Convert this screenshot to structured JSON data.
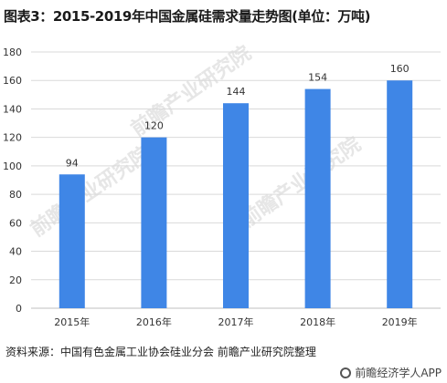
{
  "title": "图表3：2015-2019年中国金属硅需求量走势图(单位：万吨)",
  "source": "资料来源：中国有色金属工业协会硅业分会 前瞻产业研究院整理",
  "footer": "前瞻经济学人APP",
  "watermark": "前瞻产业研究院",
  "colors": {
    "bar": "#3f86e6",
    "grid": "#d9d9d9",
    "axis": "#bfbfbf"
  },
  "chart_data": {
    "type": "bar",
    "title": "图表3：2015-2019年中国金属硅需求量走势图(单位：万吨)",
    "categories": [
      "2015年",
      "2016年",
      "2017年",
      "2018年",
      "2019年"
    ],
    "values": [
      94,
      120,
      144,
      154,
      160
    ],
    "ylim": [
      0,
      180
    ],
    "yticks": [
      0,
      20,
      40,
      60,
      80,
      100,
      120,
      140,
      160,
      180
    ],
    "grid": true,
    "data_labels": true
  }
}
